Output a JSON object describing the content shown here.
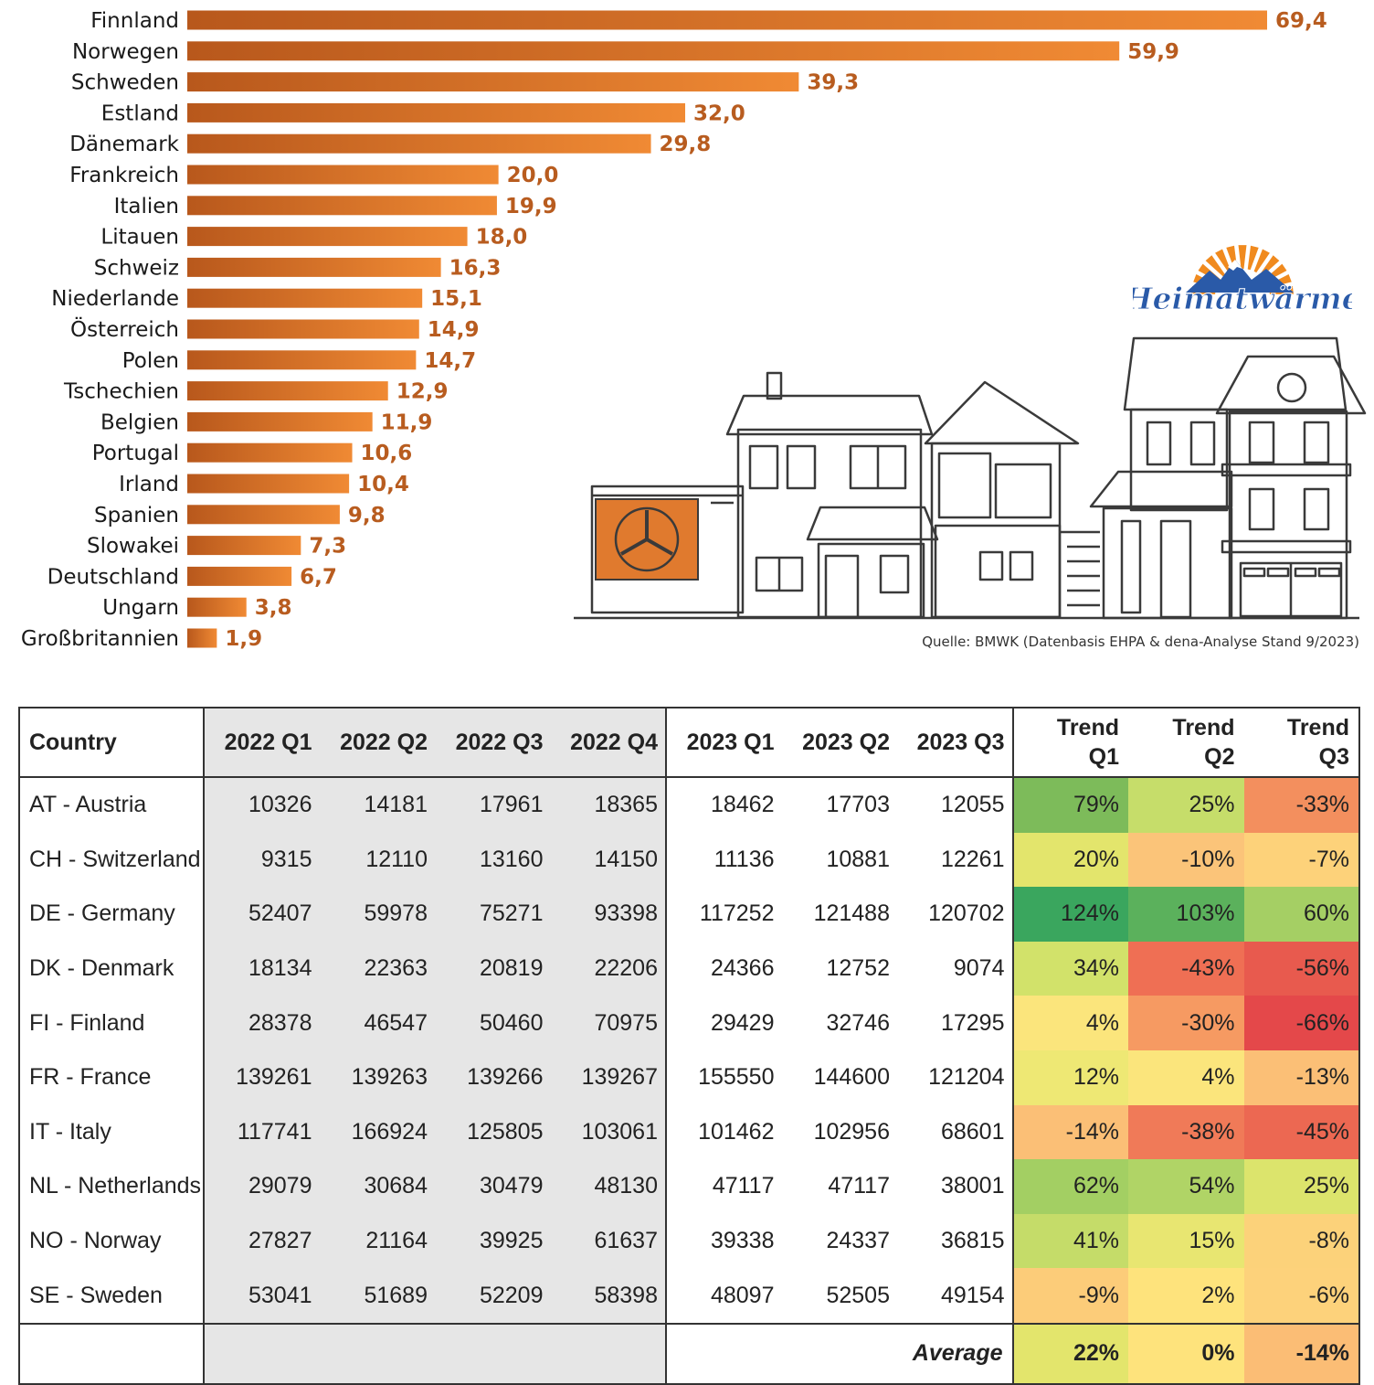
{
  "chart_data": {
    "type": "bar",
    "orientation": "horizontal",
    "categories": [
      "Finnland",
      "Norwegen",
      "Schweden",
      "Estland",
      "Dänemark",
      "Frankreich",
      "Italien",
      "Litauen",
      "Schweiz",
      "Niederlande",
      "Österreich",
      "Polen",
      "Tschechien",
      "Belgien",
      "Portugal",
      "Irland",
      "Spanien",
      "Slowakei",
      "Deutschland",
      "Ungarn",
      "Großbritannien"
    ],
    "values": [
      69.4,
      59.9,
      39.3,
      32.0,
      29.8,
      20.0,
      19.9,
      18.0,
      16.3,
      15.1,
      14.9,
      14.7,
      12.9,
      11.9,
      10.6,
      10.4,
      9.8,
      7.3,
      6.7,
      3.8,
      1.9
    ],
    "value_labels": [
      "69,4",
      "59,9",
      "39,3",
      "32,0",
      "29,8",
      "20,0",
      "19,9",
      "18,0",
      "16,3",
      "15,1",
      "14,9",
      "14,7",
      "12,9",
      "11,9",
      "10,6",
      "10,4",
      "9,8",
      "7,3",
      "6,7",
      "3,8",
      "1,9"
    ],
    "xlim": [
      0,
      69.4
    ],
    "title": "",
    "xlabel": "",
    "ylabel": "",
    "grid": false,
    "bar_color": "#e07a2e",
    "bar_color_dark": "#b85c1f"
  },
  "logo": {
    "text": "Heimatwärme",
    "sun_color": "#f08a1e",
    "text_color": "#2a5aa8"
  },
  "source": "Quelle: BMWK (Datenbasis EHPA & dena-Analyse Stand 9/2023)",
  "table": {
    "headers": [
      "Country",
      "2022 Q1",
      "2022 Q2",
      "2022 Q3",
      "2022 Q4",
      "2023 Q1",
      "2023 Q2",
      "2023 Q3"
    ],
    "trend_headers": [
      [
        "Trend",
        "Q1"
      ],
      [
        "Trend",
        "Q2"
      ],
      [
        "Trend",
        "Q3"
      ]
    ],
    "rows": [
      {
        "country": "AT - Austria",
        "values": [
          "10326",
          "14181",
          "17961",
          "18365",
          "18462",
          "17703",
          "12055"
        ],
        "trends": [
          "79%",
          "25%",
          "-33%"
        ],
        "trend_colors": [
          "#7dbb5a",
          "#c6dd6a",
          "#f38f5e"
        ]
      },
      {
        "country": "CH - Switzerland",
        "values": [
          "9315",
          "12110",
          "13160",
          "14150",
          "11136",
          "10881",
          "12261"
        ],
        "trends": [
          "20%",
          "-10%",
          "-7%"
        ],
        "trend_colors": [
          "#e3e56c",
          "#fbc479",
          "#fdd27a"
        ]
      },
      {
        "country": "DE - Germany",
        "values": [
          "52407",
          "59978",
          "75271",
          "93398",
          "117252",
          "121488",
          "120702"
        ],
        "trends": [
          "124%",
          "103%",
          "60%"
        ],
        "trend_colors": [
          "#3aa65e",
          "#5bb15c",
          "#a5cf64"
        ]
      },
      {
        "country": "DK - Denmark",
        "values": [
          "18134",
          "22363",
          "20819",
          "22206",
          "24366",
          "12752",
          "9074"
        ],
        "trends": [
          "34%",
          "-43%",
          "-56%"
        ],
        "trend_colors": [
          "#d2e26a",
          "#ef6f54",
          "#e85a4e"
        ]
      },
      {
        "country": "FI - Finland",
        "values": [
          "28378",
          "46547",
          "50460",
          "70975",
          "29429",
          "32746",
          "17295"
        ],
        "trends": [
          "4%",
          "-30%",
          "-66%"
        ],
        "trend_colors": [
          "#fbe57c",
          "#f69a62",
          "#e4484a"
        ]
      },
      {
        "country": "FR - France",
        "values": [
          "139261",
          "139263",
          "139266",
          "139267",
          "155550",
          "144600",
          "121204"
        ],
        "trends": [
          "12%",
          "4%",
          "-13%"
        ],
        "trend_colors": [
          "#eee874",
          "#fbe57c",
          "#fbbf76"
        ]
      },
      {
        "country": "IT - Italy",
        "values": [
          "117741",
          "166924",
          "125805",
          "103061",
          "101462",
          "102956",
          "68601"
        ],
        "trends": [
          "-14%",
          "-38%",
          "-45%"
        ],
        "trend_colors": [
          "#fbbf76",
          "#f07a58",
          "#ec6852"
        ]
      },
      {
        "country": "NL - Netherlands",
        "values": [
          "29079",
          "30684",
          "30479",
          "48130",
          "47117",
          "47117",
          "38001"
        ],
        "trends": [
          "62%",
          "54%",
          "25%"
        ],
        "trend_colors": [
          "#a3cf63",
          "#b0d466",
          "#dce46c"
        ]
      },
      {
        "country": "NO - Norway",
        "values": [
          "27827",
          "21164",
          "39925",
          "61637",
          "39338",
          "24337",
          "36815"
        ],
        "trends": [
          "41%",
          "15%",
          "-8%"
        ],
        "trend_colors": [
          "#c5dc69",
          "#e8e671",
          "#fcd27a"
        ]
      },
      {
        "country": "SE - Sweden",
        "values": [
          "53041",
          "51689",
          "52209",
          "58398",
          "48097",
          "52505",
          "49154"
        ],
        "trends": [
          "-9%",
          "2%",
          "-6%"
        ],
        "trend_colors": [
          "#fccc79",
          "#fee37c",
          "#fdd27b"
        ]
      }
    ],
    "average": {
      "label": "Average",
      "values": [
        "22%",
        "0%",
        "-14%"
      ],
      "colors": [
        "#e3e56c",
        "#fee37c",
        "#fbbd75"
      ]
    }
  }
}
